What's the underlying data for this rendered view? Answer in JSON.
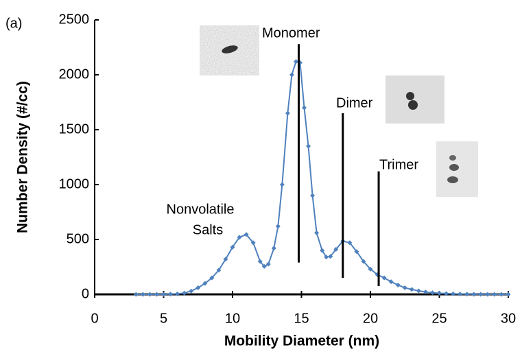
{
  "chart_data": {
    "type": "line",
    "xlabel": "Mobility Diameter (nm)",
    "ylabel": "Number Density (#/cc)",
    "annotations": [
      "(a)",
      "Monomer",
      "Dimer",
      "Trimer"
    ],
    "salts_label": [
      "Nonvolatile",
      "Salts"
    ],
    "x": [
      3,
      3.5,
      4,
      4.5,
      5,
      5.5,
      6,
      6.5,
      7,
      7.5,
      8,
      8.5,
      9,
      9.5,
      10,
      10.5,
      11,
      11.5,
      12,
      12.3,
      12.6,
      13,
      13.3,
      13.6,
      14,
      14.3,
      14.6,
      14.9,
      15.2,
      15.5,
      15.8,
      16.1,
      16.5,
      16.8,
      17.1,
      17.5,
      18,
      18.5,
      19,
      19.5,
      20,
      20.5,
      21,
      21.5,
      22,
      22.5,
      23,
      23.5,
      24,
      24.5,
      25,
      25.5,
      26,
      26.5,
      27,
      27.5,
      28,
      28.5,
      29,
      29.5,
      30
    ],
    "series": [
      {
        "name": "Number Density",
        "color": "#4f81bd",
        "values": [
          0,
          0,
          0,
          0,
          0,
          2,
          5,
          12,
          30,
          60,
          100,
          150,
          220,
          320,
          430,
          520,
          545,
          470,
          300,
          255,
          275,
          420,
          620,
          1000,
          1650,
          2000,
          2120,
          2110,
          1700,
          1350,
          900,
          560,
          400,
          340,
          345,
          410,
          485,
          470,
          390,
          300,
          230,
          180,
          150,
          115,
          85,
          60,
          45,
          32,
          22,
          15,
          10,
          7,
          5,
          3,
          2,
          1,
          1,
          0,
          0,
          0,
          0
        ]
      }
    ],
    "ref_lines": [
      {
        "x": 14.8,
        "y": [
          290,
          2280
        ]
      },
      {
        "x": 18,
        "y": [
          150,
          1650
        ]
      },
      {
        "x": 20.6,
        "y": [
          75,
          1120
        ]
      }
    ],
    "xlim": [
      0,
      30
    ],
    "xticks": [
      0,
      5,
      10,
      15,
      20,
      25,
      30
    ],
    "ylim": [
      0,
      2500
    ],
    "yticks": [
      0,
      500,
      1000,
      1500,
      2000,
      2500
    ],
    "grid": false
  }
}
